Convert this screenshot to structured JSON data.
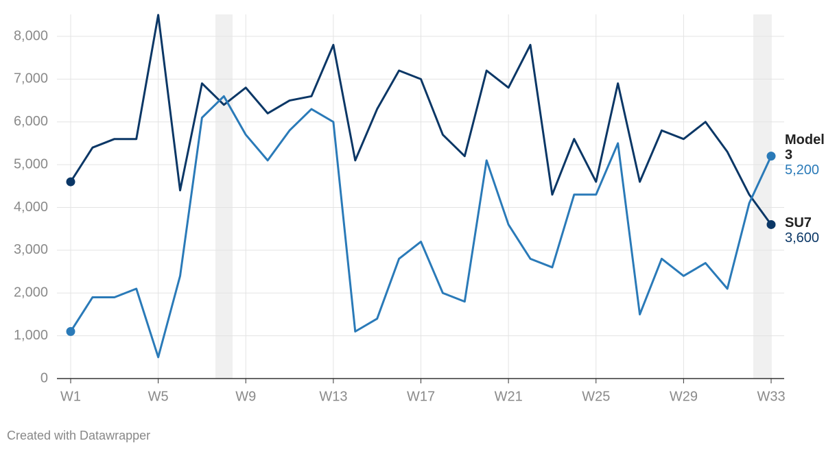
{
  "chart_data": {
    "type": "line",
    "footer": "Created with Datawrapper",
    "categories": [
      "W1",
      null,
      null,
      null,
      "W5",
      null,
      null,
      null,
      "W9",
      null,
      null,
      null,
      "W13",
      null,
      null,
      null,
      "W17",
      null,
      null,
      null,
      "W21",
      null,
      null,
      null,
      "W25",
      null,
      null,
      null,
      "W29",
      null,
      null,
      null,
      "W33"
    ],
    "series": [
      {
        "name": "SU7",
        "color": "#0b3766",
        "values": [
          4600,
          5400,
          5600,
          5600,
          8500,
          4400,
          6900,
          6400,
          6800,
          6200,
          6500,
          6600,
          7800,
          5100,
          6300,
          7200,
          7000,
          5700,
          5200,
          7200,
          6800,
          7800,
          4300,
          5600,
          4600,
          6900,
          4600,
          5800,
          5600,
          6000,
          5300,
          4300,
          3600
        ],
        "value_labels": [
          null,
          null,
          null,
          null,
          null,
          null,
          null,
          null,
          null,
          null,
          null,
          null,
          null,
          null,
          null,
          null,
          null,
          null,
          null,
          null,
          null,
          null,
          null,
          null,
          null,
          null,
          null,
          null,
          null,
          null,
          null,
          null,
          "3,600"
        ]
      },
      {
        "name": "Model 3",
        "color": "#2a7ab8",
        "values": [
          1100,
          1900,
          1900,
          2100,
          500,
          2400,
          6100,
          6600,
          5700,
          5100,
          5800,
          6300,
          6000,
          1100,
          1400,
          2800,
          3200,
          2000,
          1800,
          5100,
          3600,
          2800,
          2600,
          4300,
          4300,
          5500,
          1500,
          2800,
          2400,
          2700,
          2100,
          4100,
          5200
        ],
        "value_labels": [
          null,
          null,
          null,
          null,
          null,
          null,
          null,
          null,
          null,
          null,
          null,
          null,
          null,
          null,
          null,
          null,
          null,
          null,
          null,
          null,
          null,
          null,
          null,
          null,
          null,
          null,
          null,
          null,
          null,
          null,
          null,
          null,
          "5,200"
        ]
      }
    ],
    "ylim": [
      0,
      8000
    ],
    "yticks": [
      0,
      {
        "value": 1000,
        "label": "1,000"
      },
      {
        "value": 2000,
        "label": "2,000"
      },
      {
        "value": 3000,
        "label": "3,000"
      },
      {
        "value": 4000,
        "label": "4,000"
      },
      {
        "value": 5000,
        "label": "5,000"
      },
      {
        "value": 6000,
        "label": "6,000"
      },
      {
        "value": 7000,
        "label": "7,000"
      },
      {
        "value": 8000,
        "label": "8,000"
      }
    ],
    "grid": true
  }
}
